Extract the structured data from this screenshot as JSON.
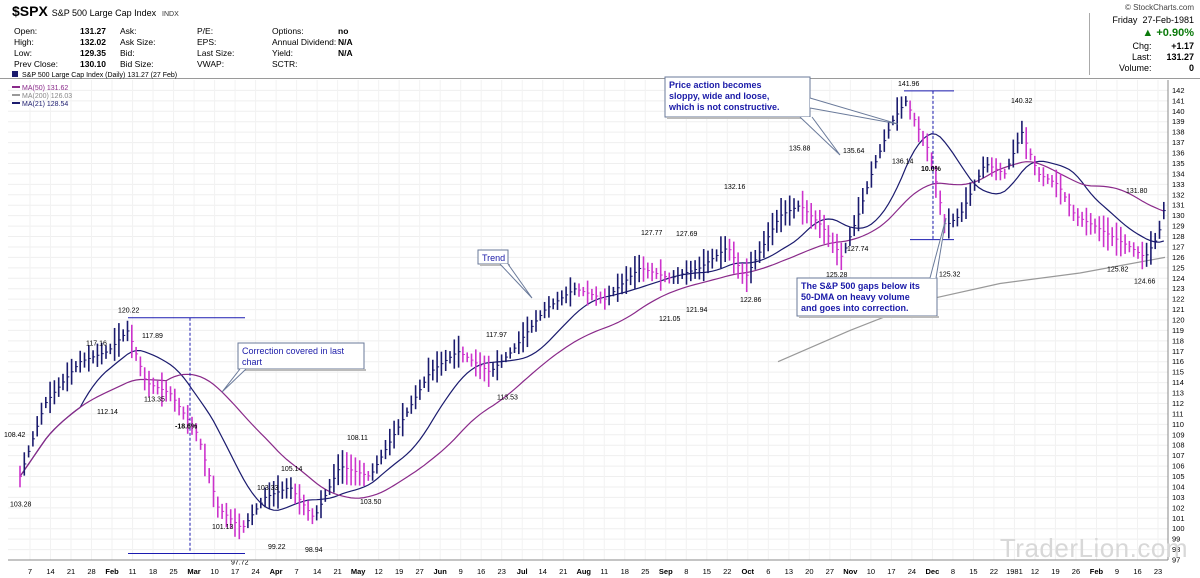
{
  "header": {
    "symbol": "$SPX",
    "name": "S&P 500 Large Cap Index",
    "exchange": "INDX",
    "copyright": "© StockCharts.com",
    "col1": [
      {
        "label": "Open:",
        "value": "131.27"
      },
      {
        "label": "High:",
        "value": "132.02"
      },
      {
        "label": "Low:",
        "value": "129.35"
      },
      {
        "label": "Prev Close:",
        "value": "130.10"
      }
    ],
    "col2": [
      {
        "label": "Ask:",
        "value": ""
      },
      {
        "label": "Ask Size:",
        "value": ""
      },
      {
        "label": "Bid:",
        "value": ""
      },
      {
        "label": "Bid Size:",
        "value": ""
      }
    ],
    "col3": [
      {
        "label": "P/E:",
        "value": ""
      },
      {
        "label": "EPS:",
        "value": ""
      },
      {
        "label": "Last Size:",
        "value": ""
      },
      {
        "label": "VWAP:",
        "value": ""
      }
    ],
    "col4": [
      {
        "label": "Options:",
        "value": "no"
      },
      {
        "label": "Annual Dividend:",
        "value": "N/A"
      },
      {
        "label": "Yield:",
        "value": "N/A"
      },
      {
        "label": "SCTR:",
        "value": ""
      }
    ],
    "quote": {
      "day": "Friday",
      "date": "27-Feb-1981",
      "pct_change": "+0.90%",
      "chg_label": "Chg:",
      "chg": "+1.17",
      "last_label": "Last:",
      "last": "131.27",
      "volume_label": "Volume:",
      "volume": "0"
    }
  },
  "legend": {
    "title": "S&P 500 Large Cap Index (Daily) 131.27 (27 Feb)",
    "ma50": "MA(50) 131.62",
    "ma200": "MA(200) 126.03",
    "ma21": "MA(21) 128.54"
  },
  "colors": {
    "up_bar": "#1b1b6e",
    "down_bar": "#cc33cc",
    "ma50": "#8a2a8a",
    "ma200": "#999999",
    "ma21": "#1b1b6e",
    "annotation_text": "#1a1aa8",
    "quote_up": "#0a7a0a"
  },
  "watermark": "TraderLion.com",
  "chart_data": {
    "type": "line",
    "title": "S&P 500 Large Cap Index (Daily) 131.27 (27 Feb)",
    "ylim": [
      97,
      143
    ],
    "y_ticks": [
      97,
      98,
      99,
      100,
      101,
      102,
      103,
      104,
      105,
      106,
      107,
      108,
      109,
      110,
      111,
      112,
      113,
      114,
      115,
      116,
      117,
      118,
      119,
      120,
      121,
      122,
      123,
      124,
      125,
      126,
      127,
      128,
      129,
      130,
      131,
      132,
      133,
      134,
      135,
      136,
      137,
      138,
      139,
      140,
      141,
      142
    ],
    "x_ticks": [
      "7",
      "14",
      "21",
      "28",
      "Feb",
      "11",
      "18",
      "25",
      "Mar",
      "10",
      "17",
      "24",
      "Apr",
      "7",
      "14",
      "21",
      "May",
      "12",
      "19",
      "27",
      "Jun",
      "9",
      "16",
      "23",
      "Jul",
      "14",
      "21",
      "Aug",
      "11",
      "18",
      "25",
      "Sep",
      "8",
      "15",
      "22",
      "Oct",
      "6",
      "13",
      "20",
      "27",
      "Nov",
      "10",
      "17",
      "24",
      "Dec",
      "8",
      "15",
      "22",
      "1981",
      "12",
      "19",
      "26",
      "Feb",
      "9",
      "16",
      "23"
    ],
    "series": [
      {
        "name": "MA(50)",
        "values": [
          131.62
        ]
      },
      {
        "name": "MA(200)",
        "values": [
          126.03
        ]
      },
      {
        "name": "MA(21)",
        "values": [
          128.54
        ]
      }
    ],
    "price_points": [
      {
        "x": "Jan 1980",
        "y": 108.42
      },
      {
        "x": "Jan 1980",
        "y": 103.28
      },
      {
        "x": "Jan 1980",
        "y": 117.16
      },
      {
        "x": "Feb 1980",
        "y": 112.14
      },
      {
        "x": "Feb 1980",
        "y": 120.22
      },
      {
        "x": "Feb 1980",
        "y": 117.89
      },
      {
        "x": "Mar 1980",
        "y": 113.35
      },
      {
        "x": "Mar 1980",
        "y": 101.13
      },
      {
        "x": "Mar 1980",
        "y": 97.72
      },
      {
        "x": "Apr 1980",
        "y": 103.33
      },
      {
        "x": "Apr 1980",
        "y": 99.22
      },
      {
        "x": "Apr 1980",
        "y": 105.14
      },
      {
        "x": "Apr 1980",
        "y": 98.94
      },
      {
        "x": "May 1980",
        "y": 108.11
      },
      {
        "x": "May 1980",
        "y": 103.5
      },
      {
        "x": "Jun 1980",
        "y": 117.97
      },
      {
        "x": "Jun 1980",
        "y": 113.53
      },
      {
        "x": "Jul 1980",
        "y": 127.77
      },
      {
        "x": "Jul 1980",
        "y": 121.05
      },
      {
        "x": "Aug 1980",
        "y": 127.69
      },
      {
        "x": "Aug 1980",
        "y": 121.94
      },
      {
        "x": "Sep 1980",
        "y": 132.16
      },
      {
        "x": "Sep 1980",
        "y": 122.86
      },
      {
        "x": "Oct 1980",
        "y": 135.88
      },
      {
        "x": "Oct 1980",
        "y": 125.28
      },
      {
        "x": "Oct 1980",
        "y": 135.64
      },
      {
        "x": "Oct 1980",
        "y": 127.74
      },
      {
        "x": "Nov 1980",
        "y": 141.96
      },
      {
        "x": "Nov 1980",
        "y": 136.14
      },
      {
        "x": "Dec 1980",
        "y": 125.32
      },
      {
        "x": "Jan 1981",
        "y": 140.32
      },
      {
        "x": "Feb 1981",
        "y": 131.8
      },
      {
        "x": "Feb 1981",
        "y": 125.82
      },
      {
        "x": "Feb 1981",
        "y": 124.66
      }
    ],
    "annotations": [
      {
        "text": "Correction covered in last chart"
      },
      {
        "text": "Trend"
      },
      {
        "text": "Price action becomes sloppy, wide and loose, which is not constructive."
      },
      {
        "text": "The S&P 500 gaps below its 50-DMA on heavy volume and goes into correction."
      },
      {
        "text": "-18.6%"
      },
      {
        "text": "10.0%"
      }
    ]
  }
}
